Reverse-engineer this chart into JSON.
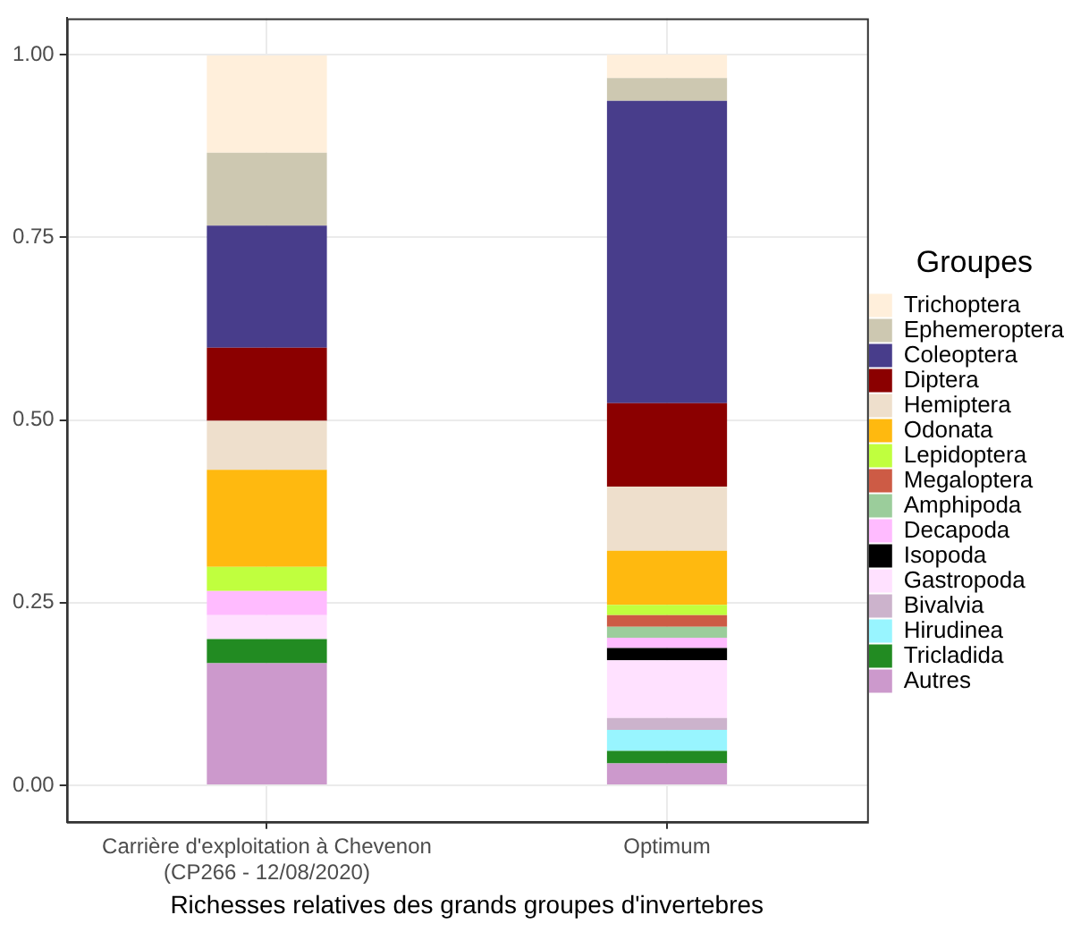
{
  "chart_data": {
    "type": "bar",
    "stacked": true,
    "xlabel": "Richesses relatives des grands groupes d'invertebres",
    "legend_title": "Groupes",
    "legend": "right",
    "grid": true,
    "categories": [
      "Carrière d'exploitation à Chevenon\n(CP266 - 12/08/2020)",
      "Optimum"
    ],
    "ylim": [
      -0.05,
      1.05
    ],
    "yticks": [
      {
        "value": 0,
        "label": "0.00"
      },
      {
        "value": 0.25,
        "label": "0.25"
      },
      {
        "value": 0.5,
        "label": "0.50"
      },
      {
        "value": 0.75,
        "label": "0.75"
      },
      {
        "value": 1,
        "label": "1.00"
      }
    ],
    "series": [
      {
        "name": "Autres",
        "color": "#cc99cc",
        "values": [
          0.167,
          0.03
        ]
      },
      {
        "name": "Tricladida",
        "color": "#228b22",
        "values": [
          0.033,
          0.017
        ]
      },
      {
        "name": "Hirudinea",
        "color": "#98f5ff",
        "values": [
          0,
          0.029
        ]
      },
      {
        "name": "Bivalvia",
        "color": "#ccb3cc",
        "values": [
          0,
          0.016
        ]
      },
      {
        "name": "Gastropoda",
        "color": "#ffe1ff",
        "values": [
          0.033,
          0.079
        ]
      },
      {
        "name": "Isopoda",
        "color": "#000000",
        "values": [
          0,
          0.017
        ]
      },
      {
        "name": "Decapoda",
        "color": "#ffbbff",
        "values": [
          0.033,
          0.014
        ]
      },
      {
        "name": "Amphipoda",
        "color": "#9bcd9b",
        "values": [
          0,
          0.015
        ]
      },
      {
        "name": "Megaloptera",
        "color": "#cd5b45",
        "values": [
          0,
          0.016
        ]
      },
      {
        "name": "Lepidoptera",
        "color": "#c0ff3e",
        "values": [
          0.033,
          0.014
        ]
      },
      {
        "name": "Odonata",
        "color": "#ffb90f",
        "values": [
          0.133,
          0.074
        ]
      },
      {
        "name": "Hemiptera",
        "color": "#eedfcc",
        "values": [
          0.067,
          0.088
        ]
      },
      {
        "name": "Diptera",
        "color": "#8b0000",
        "values": [
          0.1,
          0.114
        ]
      },
      {
        "name": "Coleoptera",
        "color": "#483d8b",
        "values": [
          0.167,
          0.414
        ]
      },
      {
        "name": "Ephemeroptera",
        "color": "#cdc8b1",
        "values": [
          0.1,
          0.031
        ]
      },
      {
        "name": "Trichoptera",
        "color": "#ffefdb",
        "values": [
          0.133,
          0.032
        ]
      }
    ]
  }
}
